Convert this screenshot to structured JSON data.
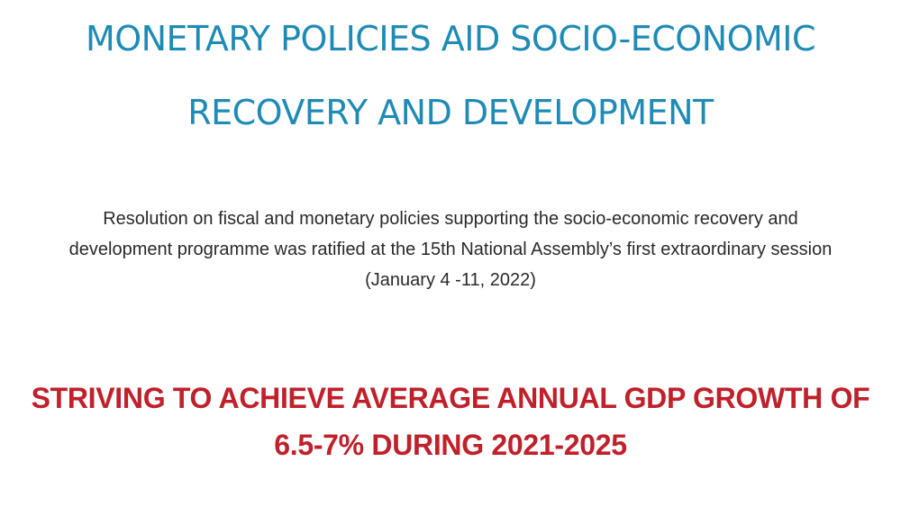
{
  "title": {
    "line1": "MONETARY POLICIES AID SOCIO-ECONOMIC",
    "line2": "RECOVERY AND DEVELOPMENT"
  },
  "subtitle": {
    "line1": "Resolution on fiscal and monetary policies supporting the socio-economic recovery and",
    "line2": "development programme was ratified at the 15th National Assembly’s first extraordinary session",
    "line3": "(January 4 -11, 2022)"
  },
  "headline": {
    "line1": "STRIVING TO ACHIEVE AVERAGE ANNUAL GDP GROWTH OF",
    "line2": "6.5-7% DURING 2021-2025"
  },
  "colors": {
    "title": "#1e8bb6",
    "headline": "#c0202a",
    "body_text": "#2a2a2a",
    "background": "#ffffff"
  }
}
